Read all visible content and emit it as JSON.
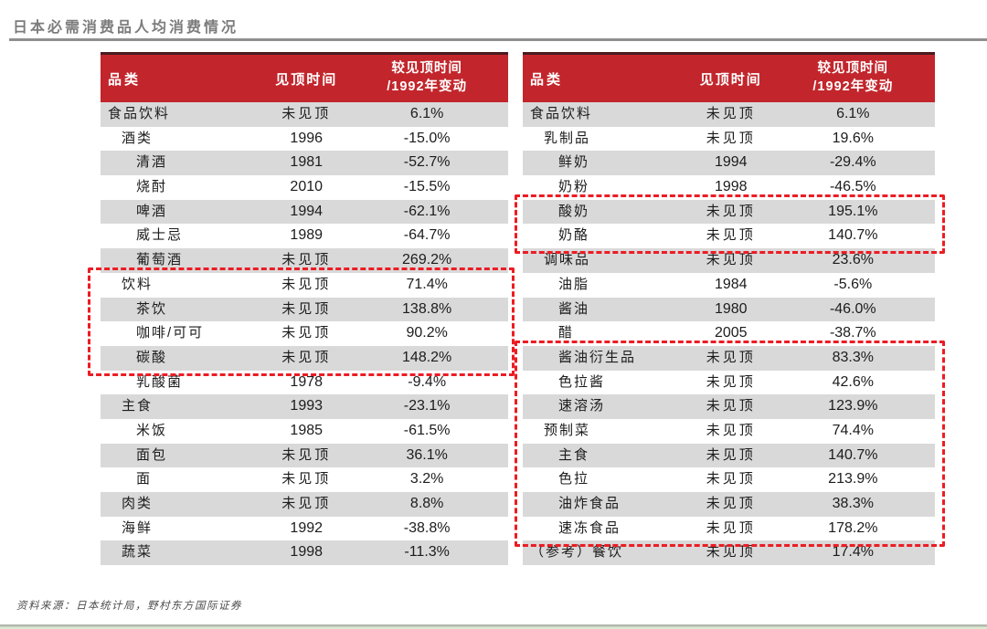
{
  "page_title": "日本必需消费品人均消费情况",
  "source_note": "资料来源：日本统计局，野村东方国际证券",
  "colors": {
    "header_bg": "#C2262C",
    "header_top_border": "#4A1B1E",
    "row_alt_bg": "#D9D9D9",
    "highlight_box": "#EC1C24",
    "title_text": "#7C7C7C",
    "body_text": "#1C1C1C"
  },
  "tables": [
    {
      "name": "左表-食品饮料",
      "columns": {
        "category": "品类",
        "peak": "见顶时间",
        "change": "较见顶时间\n/1992年变动"
      },
      "rows": [
        {
          "category": "食品饮料",
          "indent": 0,
          "peak": "未见顶",
          "change": "6.1%"
        },
        {
          "category": "酒类",
          "indent": 1,
          "peak": "1996",
          "change": "-15.0%"
        },
        {
          "category": "清酒",
          "indent": 2,
          "peak": "1981",
          "change": "-52.7%"
        },
        {
          "category": "烧酎",
          "indent": 2,
          "peak": "2010",
          "change": "-15.5%"
        },
        {
          "category": "啤酒",
          "indent": 2,
          "peak": "1994",
          "change": "-62.1%"
        },
        {
          "category": "威士忌",
          "indent": 2,
          "peak": "1989",
          "change": "-64.7%"
        },
        {
          "category": "葡萄酒",
          "indent": 2,
          "peak": "未见顶",
          "change": "269.2%"
        },
        {
          "category": "饮料",
          "indent": 1,
          "peak": "未见顶",
          "change": "71.4%"
        },
        {
          "category": "茶饮",
          "indent": 2,
          "peak": "未见顶",
          "change": "138.8%"
        },
        {
          "category": "咖啡/可可",
          "indent": 2,
          "peak": "未见顶",
          "change": "90.2%"
        },
        {
          "category": "碳酸",
          "indent": 2,
          "peak": "未见顶",
          "change": "148.2%"
        },
        {
          "category": "乳酸菌",
          "indent": 2,
          "peak": "1978",
          "change": "-9.4%"
        },
        {
          "category": "主食",
          "indent": 1,
          "peak": "1993",
          "change": "-23.1%"
        },
        {
          "category": "米饭",
          "indent": 2,
          "peak": "1985",
          "change": "-61.5%"
        },
        {
          "category": "面包",
          "indent": 2,
          "peak": "未见顶",
          "change": "36.1%"
        },
        {
          "category": "面",
          "indent": 2,
          "peak": "未见顶",
          "change": "3.2%"
        },
        {
          "category": "肉类",
          "indent": 1,
          "peak": "未见顶",
          "change": "8.8%"
        },
        {
          "category": "海鲜",
          "indent": 1,
          "peak": "1992",
          "change": "-38.8%"
        },
        {
          "category": "蔬菜",
          "indent": 1,
          "peak": "1998",
          "change": "-11.3%"
        }
      ],
      "highlights": [
        {
          "from_row": 7,
          "to_row": 10
        }
      ]
    },
    {
      "name": "右表-乳制品调味品",
      "columns": {
        "category": "品类",
        "peak": "见顶时间",
        "change": "较见顶时间\n/1992年变动"
      },
      "rows": [
        {
          "category": "食品饮料",
          "indent": 0,
          "peak": "未见顶",
          "change": "6.1%"
        },
        {
          "category": "乳制品",
          "indent": 1,
          "peak": "未见顶",
          "change": "19.6%"
        },
        {
          "category": "鲜奶",
          "indent": 2,
          "peak": "1994",
          "change": "-29.4%"
        },
        {
          "category": "奶粉",
          "indent": 2,
          "peak": "1998",
          "change": "-46.5%"
        },
        {
          "category": "酸奶",
          "indent": 2,
          "peak": "未见顶",
          "change": "195.1%"
        },
        {
          "category": "奶酪",
          "indent": 2,
          "peak": "未见顶",
          "change": "140.7%"
        },
        {
          "category": "调味品",
          "indent": 1,
          "peak": "未见顶",
          "change": "23.6%"
        },
        {
          "category": "油脂",
          "indent": 2,
          "peak": "1984",
          "change": "-5.6%"
        },
        {
          "category": "酱油",
          "indent": 2,
          "peak": "1980",
          "change": "-46.0%"
        },
        {
          "category": "醋",
          "indent": 2,
          "peak": "2005",
          "change": "-38.7%"
        },
        {
          "category": "酱油衍生品",
          "indent": 2,
          "peak": "未见顶",
          "change": "83.3%"
        },
        {
          "category": "色拉酱",
          "indent": 2,
          "peak": "未见顶",
          "change": "42.6%"
        },
        {
          "category": "速溶汤",
          "indent": 2,
          "peak": "未见顶",
          "change": "123.9%"
        },
        {
          "category": "预制菜",
          "indent": 1,
          "peak": "未见顶",
          "change": "74.4%"
        },
        {
          "category": "主食",
          "indent": 2,
          "peak": "未见顶",
          "change": "140.7%"
        },
        {
          "category": "色拉",
          "indent": 2,
          "peak": "未见顶",
          "change": "213.9%"
        },
        {
          "category": "油炸食品",
          "indent": 2,
          "peak": "未见顶",
          "change": "38.3%"
        },
        {
          "category": "速冻食品",
          "indent": 2,
          "peak": "未见顶",
          "change": "178.2%"
        },
        {
          "category": "（参考）餐饮",
          "indent": 0,
          "peak": "未见顶",
          "change": "17.4%"
        }
      ],
      "highlights": [
        {
          "from_row": 4,
          "to_row": 5
        },
        {
          "from_row": 10,
          "to_row": 17
        }
      ]
    }
  ]
}
